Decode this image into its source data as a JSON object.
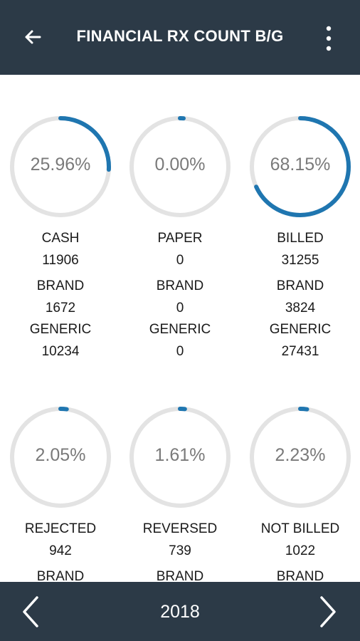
{
  "header": {
    "title": "FINANCIAL RX COUNT B/G",
    "back_icon": "arrow-left-icon",
    "menu_icon": "more-vertical-icon"
  },
  "colors": {
    "bar": "#2c3a47",
    "accent": "#1f76b0",
    "track": "#e3e3e3"
  },
  "cards": [
    {
      "percent_label": "25.96%",
      "percent": 25.96,
      "label": "CASH",
      "count": "11906",
      "brand_label": "BRAND",
      "brand": "1672",
      "generic_label": "GENERIC",
      "generic": "10234"
    },
    {
      "percent_label": "0.00%",
      "percent": 0.0,
      "label": "PAPER",
      "count": "0",
      "brand_label": "BRAND",
      "brand": "0",
      "generic_label": "GENERIC",
      "generic": "0"
    },
    {
      "percent_label": "68.15%",
      "percent": 68.15,
      "label": "BILLED",
      "count": "31255",
      "brand_label": "BRAND",
      "brand": "3824",
      "generic_label": "GENERIC",
      "generic": "27431"
    },
    {
      "percent_label": "2.05%",
      "percent": 2.05,
      "label": "REJECTED",
      "count": "942",
      "brand_label": "BRAND"
    },
    {
      "percent_label": "1.61%",
      "percent": 1.61,
      "label": "REVERSED",
      "count": "739",
      "brand_label": "BRAND"
    },
    {
      "percent_label": "2.23%",
      "percent": 2.23,
      "label": "NOT BILLED",
      "count": "1022",
      "brand_label": "BRAND"
    }
  ],
  "footer": {
    "year": "2018",
    "prev_icon": "chevron-left-icon",
    "next_icon": "chevron-right-icon"
  }
}
